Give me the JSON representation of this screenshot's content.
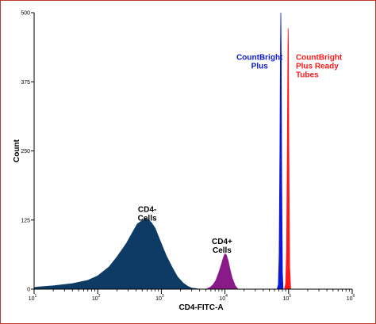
{
  "chart_data": {
    "type": "area",
    "title": "",
    "xlabel": "CD4-FITC-A",
    "ylabel": "Count",
    "xscale": "log",
    "xlim": [
      10,
      1000000
    ],
    "ylim": [
      0,
      500
    ],
    "x_ticks": [
      {
        "value": 10,
        "base": "10",
        "exp": "1"
      },
      {
        "value": 100,
        "base": "10",
        "exp": "2"
      },
      {
        "value": 1000,
        "base": "10",
        "exp": "3"
      },
      {
        "value": 10000,
        "base": "10",
        "exp": "4"
      },
      {
        "value": 100000,
        "base": "10",
        "exp": "5"
      },
      {
        "value": 1000000,
        "base": "10",
        "exp": "6"
      }
    ],
    "y_ticks": [
      {
        "value": 0,
        "label": "0"
      },
      {
        "value": 125,
        "label": "125"
      },
      {
        "value": 250,
        "label": "250"
      },
      {
        "value": 375,
        "label": "375"
      },
      {
        "value": 500,
        "label": "500"
      }
    ],
    "series": [
      {
        "key": "cd4-negative",
        "color": "#0d3b66",
        "x": [
          8,
          12,
          20,
          40,
          70,
          100,
          150,
          200,
          280,
          350,
          420,
          500,
          560,
          620,
          700,
          800,
          900,
          1000,
          1200,
          1500,
          1800,
          2200,
          2600,
          3000,
          3500,
          4000
        ],
        "y": [
          3,
          4,
          6,
          10,
          16,
          24,
          40,
          58,
          82,
          102,
          118,
          124,
          127,
          126,
          120,
          110,
          95,
          82,
          60,
          38,
          22,
          11,
          5,
          2,
          1,
          0
        ]
      },
      {
        "key": "cd4-positive",
        "color": "#8b1a89",
        "x": [
          5000,
          5800,
          6500,
          7200,
          8000,
          8800,
          9500,
          10000,
          10500,
          11200,
          12000,
          13000,
          14500,
          16000
        ],
        "y": [
          0,
          3,
          8,
          16,
          30,
          45,
          58,
          64,
          62,
          52,
          36,
          20,
          6,
          0
        ]
      },
      {
        "key": "countbright-plus",
        "color": "#0a18d6",
        "x": [
          66000,
          69000,
          71000,
          73000,
          74500,
          75500,
          76500,
          78000,
          80000,
          82000
        ],
        "y": [
          0,
          8,
          60,
          250,
          440,
          500,
          430,
          200,
          30,
          0
        ]
      },
      {
        "key": "countbright-plus-ready-tubes",
        "color": "#ff1a1a",
        "x": [
          86000,
          90000,
          93000,
          95500,
          97500,
          98500,
          99500,
          101000,
          104000,
          108000
        ],
        "y": [
          0,
          10,
          70,
          260,
          430,
          472,
          440,
          260,
          40,
          0
        ]
      }
    ],
    "annotations": [
      {
        "key": "cd4-neg",
        "lines": [
          "CD4-",
          "Cells"
        ],
        "x": 600,
        "y": 140,
        "color": "#000000"
      },
      {
        "key": "cd4-pos",
        "lines": [
          "CD4+",
          "Cells"
        ],
        "x": 9000,
        "y": 82,
        "color": "#000000"
      },
      {
        "key": "cbp",
        "lines": [
          "CountBright",
          "Plus"
        ],
        "x": 35000,
        "y": 415,
        "color": "#0a18d6"
      },
      {
        "key": "cbprt",
        "lines": [
          "CountBright",
          "Plus Ready",
          "Tubes"
        ],
        "x": 130000,
        "y": 415,
        "color": "#ff1a1a",
        "anchor": "start"
      }
    ]
  }
}
